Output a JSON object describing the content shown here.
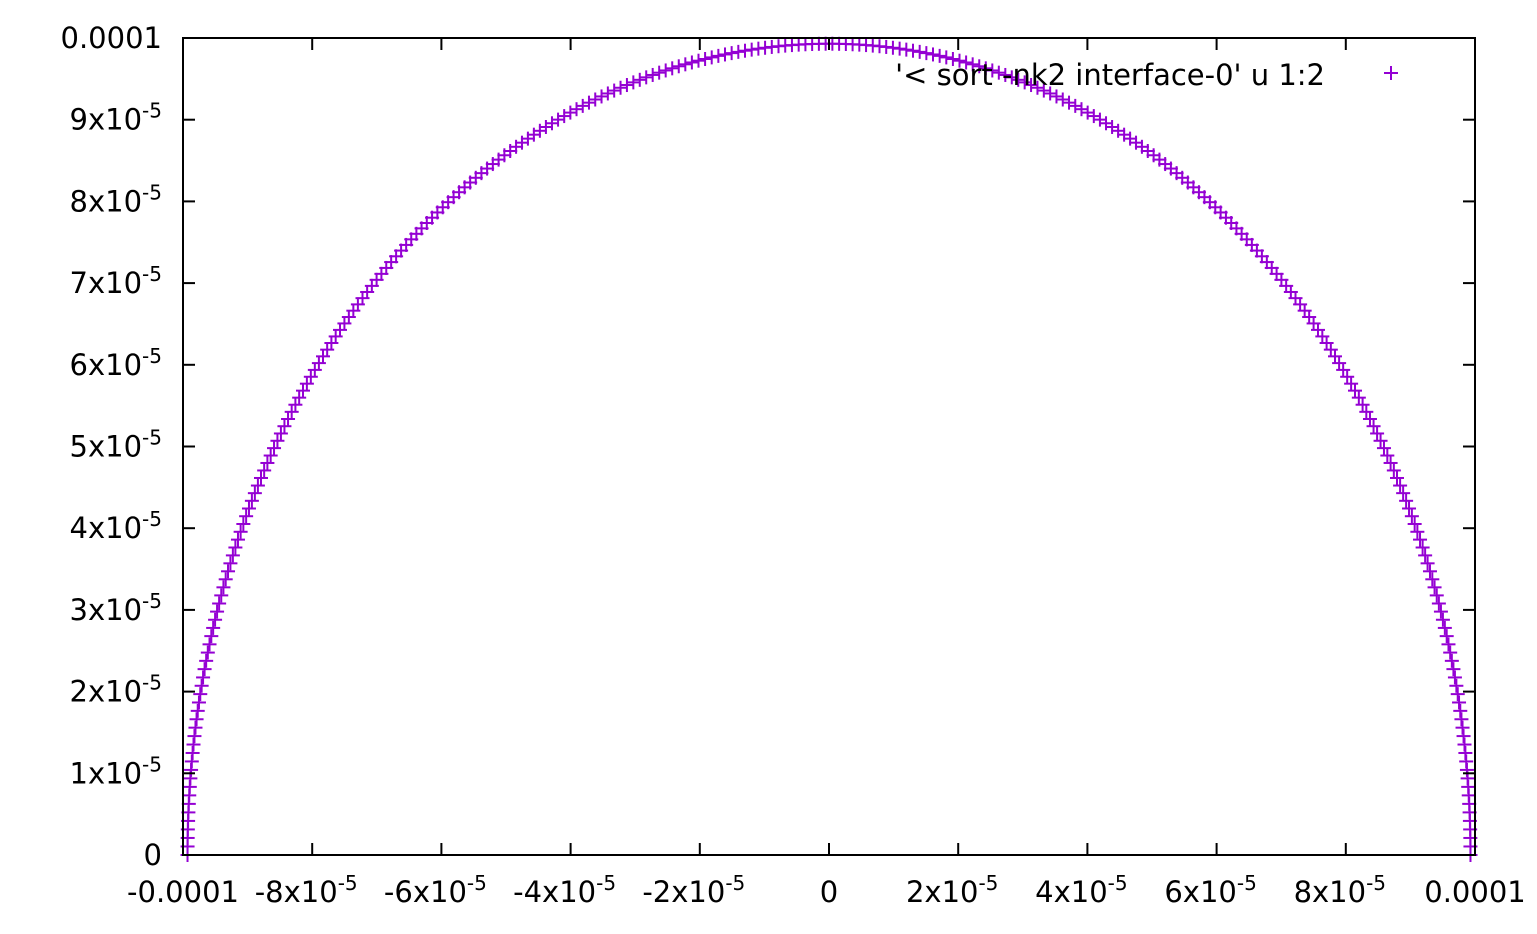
{
  "chart_data": {
    "type": "scatter",
    "xlim": [
      -0.0001,
      0.0001
    ],
    "ylim": [
      0,
      0.0001
    ],
    "grid": false,
    "legend_position": "top-right",
    "x_tick_labels": [
      {
        "value": -0.0001,
        "mant": "-0.0001",
        "exp": ""
      },
      {
        "value": -8e-05,
        "mant": "-8x10",
        "exp": "-5"
      },
      {
        "value": -6e-05,
        "mant": "-6x10",
        "exp": "-5"
      },
      {
        "value": -4e-05,
        "mant": "-4x10",
        "exp": "-5"
      },
      {
        "value": -2e-05,
        "mant": "-2x10",
        "exp": "-5"
      },
      {
        "value": 0,
        "mant": "0",
        "exp": ""
      },
      {
        "value": 2e-05,
        "mant": "2x10",
        "exp": "-5"
      },
      {
        "value": 4e-05,
        "mant": "4x10",
        "exp": "-5"
      },
      {
        "value": 6e-05,
        "mant": "6x10",
        "exp": "-5"
      },
      {
        "value": 8e-05,
        "mant": "8x10",
        "exp": "-5"
      },
      {
        "value": 0.0001,
        "mant": "0.0001",
        "exp": ""
      }
    ],
    "y_tick_labels": [
      {
        "value": 0,
        "mant": "0",
        "exp": ""
      },
      {
        "value": 1e-05,
        "mant": "1x10",
        "exp": "-5"
      },
      {
        "value": 2e-05,
        "mant": "2x10",
        "exp": "-5"
      },
      {
        "value": 3e-05,
        "mant": "3x10",
        "exp": "-5"
      },
      {
        "value": 4e-05,
        "mant": "4x10",
        "exp": "-5"
      },
      {
        "value": 5e-05,
        "mant": "5x10",
        "exp": "-5"
      },
      {
        "value": 6e-05,
        "mant": "6x10",
        "exp": "-5"
      },
      {
        "value": 7e-05,
        "mant": "7x10",
        "exp": "-5"
      },
      {
        "value": 8e-05,
        "mant": "8x10",
        "exp": "-5"
      },
      {
        "value": 9e-05,
        "mant": "9x10",
        "exp": "-5"
      },
      {
        "value": 0.0001,
        "mant": "0.0001",
        "exp": ""
      }
    ],
    "series": [
      {
        "name": "'< sort -nk2 interface-0' u 1:2",
        "color": "#9400d3",
        "marker": "plus",
        "shape": "semicircle",
        "center": [
          0,
          0
        ],
        "radius": 9.93e-05,
        "n_points": 300
      }
    ]
  }
}
